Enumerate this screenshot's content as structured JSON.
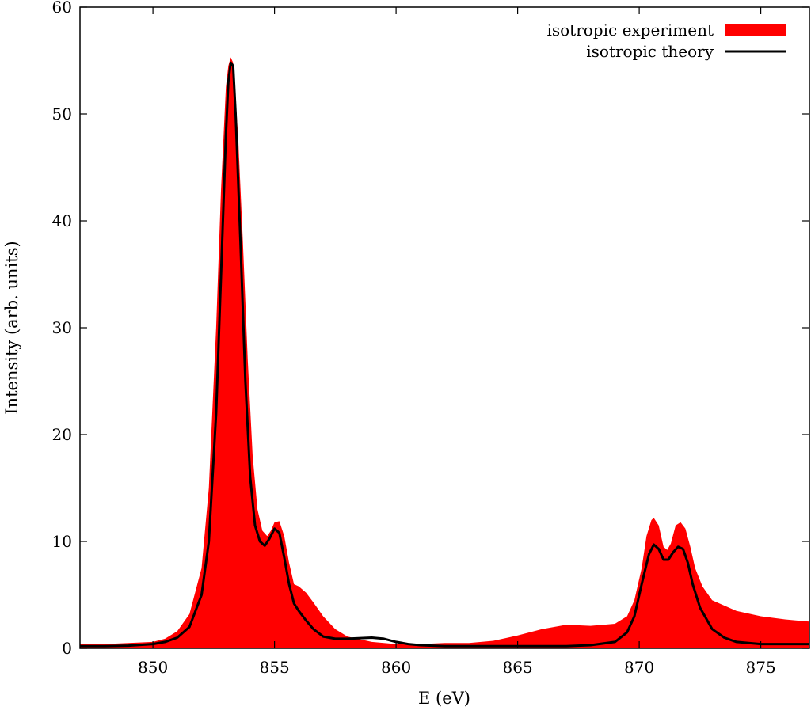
{
  "chart_data": {
    "type": "area",
    "title": "",
    "xlabel": "E (eV)",
    "ylabel": "Intensity (arb. units)",
    "xlim": [
      847,
      877
    ],
    "ylim": [
      0,
      60
    ],
    "xticks": [
      850,
      855,
      860,
      865,
      870,
      875
    ],
    "yticks": [
      0,
      10,
      20,
      30,
      40,
      50,
      60
    ],
    "grid": false,
    "legend_position": "top-right",
    "series": [
      {
        "name": "isotropic experiment",
        "style": "filled-area",
        "color": "#ff0000",
        "x": [
          847.0,
          848.0,
          849.0,
          850.0,
          850.5,
          851.0,
          851.5,
          852.0,
          852.3,
          852.6,
          852.8,
          853.0,
          853.1,
          853.2,
          853.3,
          853.5,
          853.7,
          853.9,
          854.1,
          854.3,
          854.5,
          854.7,
          854.85,
          855.0,
          855.2,
          855.4,
          855.6,
          855.8,
          856.0,
          856.3,
          856.6,
          857.0,
          857.5,
          858.0,
          859.0,
          860.0,
          861.0,
          862.0,
          863.0,
          864.0,
          865.0,
          866.0,
          867.0,
          868.0,
          869.0,
          869.5,
          869.8,
          870.1,
          870.3,
          870.5,
          870.6,
          870.8,
          871.0,
          871.15,
          871.3,
          871.5,
          871.7,
          871.9,
          872.1,
          872.3,
          872.6,
          873.0,
          873.5,
          874.0,
          875.0,
          876.0,
          877.0
        ],
        "values": [
          0.4,
          0.4,
          0.5,
          0.6,
          0.9,
          1.6,
          3.2,
          7.5,
          15.0,
          30.0,
          43.0,
          52.5,
          54.5,
          55.3,
          54.8,
          48.0,
          38.0,
          27.0,
          18.0,
          13.0,
          11.0,
          10.5,
          11.0,
          11.8,
          11.9,
          10.5,
          8.0,
          6.0,
          5.8,
          5.2,
          4.3,
          3.0,
          1.8,
          1.1,
          0.6,
          0.4,
          0.4,
          0.5,
          0.5,
          0.7,
          1.2,
          1.8,
          2.2,
          2.1,
          2.3,
          3.0,
          4.5,
          7.5,
          10.5,
          12.0,
          12.2,
          11.5,
          9.5,
          9.2,
          9.8,
          11.5,
          11.8,
          11.2,
          9.5,
          7.5,
          5.8,
          4.5,
          4.0,
          3.5,
          3.0,
          2.7,
          2.5
        ]
      },
      {
        "name": "isotropic theory",
        "style": "line",
        "color": "#000000",
        "x": [
          847.0,
          848.0,
          849.0,
          850.0,
          850.5,
          851.0,
          851.5,
          852.0,
          852.3,
          852.6,
          852.8,
          853.0,
          853.1,
          853.2,
          853.3,
          853.4,
          853.6,
          853.8,
          854.0,
          854.2,
          854.4,
          854.6,
          854.8,
          855.0,
          855.2,
          855.4,
          855.6,
          855.8,
          856.0,
          856.3,
          856.6,
          857.0,
          857.5,
          858.0,
          859.0,
          859.5,
          860.0,
          860.5,
          861.0,
          862.0,
          863.0,
          864.0,
          865.0,
          866.0,
          867.0,
          868.0,
          869.0,
          869.5,
          869.8,
          870.1,
          870.4,
          870.6,
          870.8,
          871.0,
          871.2,
          871.4,
          871.6,
          871.8,
          872.0,
          872.2,
          872.5,
          873.0,
          873.5,
          874.0,
          875.0,
          876.0,
          877.0
        ],
        "values": [
          0.2,
          0.2,
          0.25,
          0.4,
          0.6,
          1.0,
          2.0,
          5.0,
          10.0,
          22.0,
          35.0,
          48.0,
          53.0,
          54.8,
          54.5,
          50.0,
          38.0,
          25.0,
          16.0,
          11.5,
          10.0,
          9.6,
          10.3,
          11.2,
          10.8,
          8.5,
          6.0,
          4.2,
          3.5,
          2.6,
          1.8,
          1.1,
          0.9,
          0.9,
          1.0,
          0.9,
          0.6,
          0.4,
          0.3,
          0.2,
          0.2,
          0.2,
          0.2,
          0.2,
          0.2,
          0.3,
          0.6,
          1.5,
          3.0,
          6.0,
          8.8,
          9.7,
          9.3,
          8.3,
          8.3,
          9.0,
          9.5,
          9.3,
          8.0,
          6.0,
          3.8,
          1.8,
          1.0,
          0.6,
          0.4,
          0.4,
          0.4
        ]
      }
    ]
  }
}
